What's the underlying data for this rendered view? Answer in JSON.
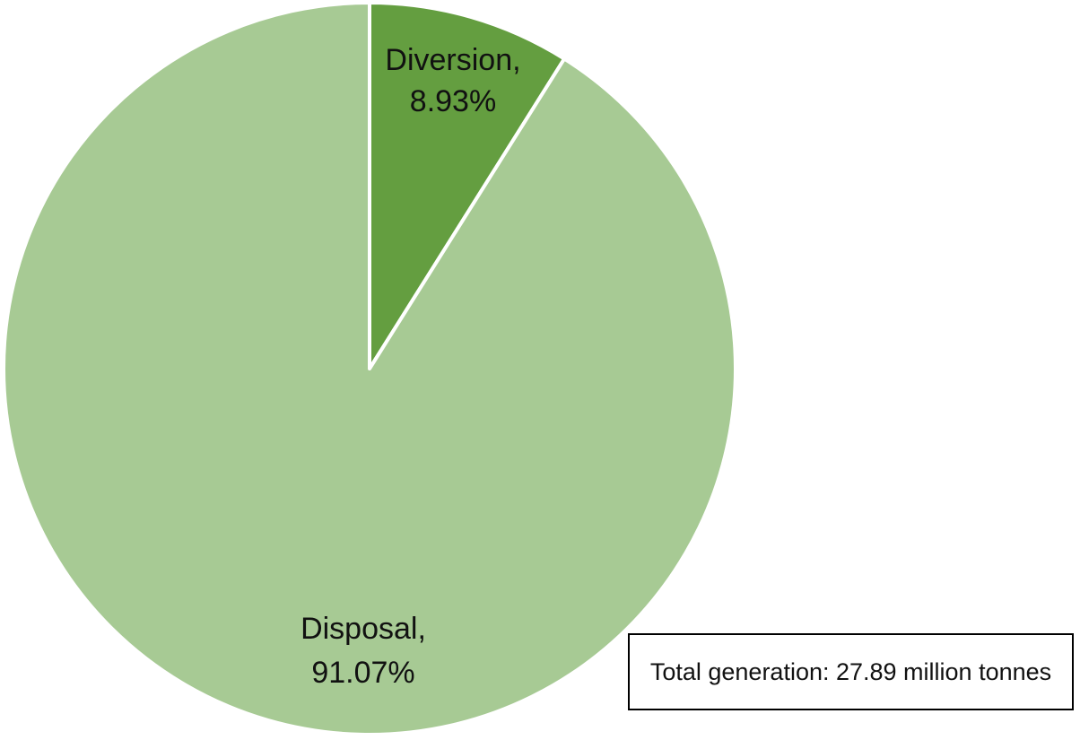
{
  "chart_data": {
    "type": "pie",
    "slices": [
      {
        "name": "Diversion,",
        "label": "8.93%",
        "value": 8.93,
        "color": "#649e40"
      },
      {
        "name": "Disposal,",
        "label": "91.07%",
        "value": 91.07,
        "color": "#a7ca94"
      }
    ],
    "slice_border_color": "#ffffff",
    "start": "top",
    "direction": "clockwise",
    "legend": "none",
    "annotation": "Total generation: 27.89 million tonnes"
  }
}
